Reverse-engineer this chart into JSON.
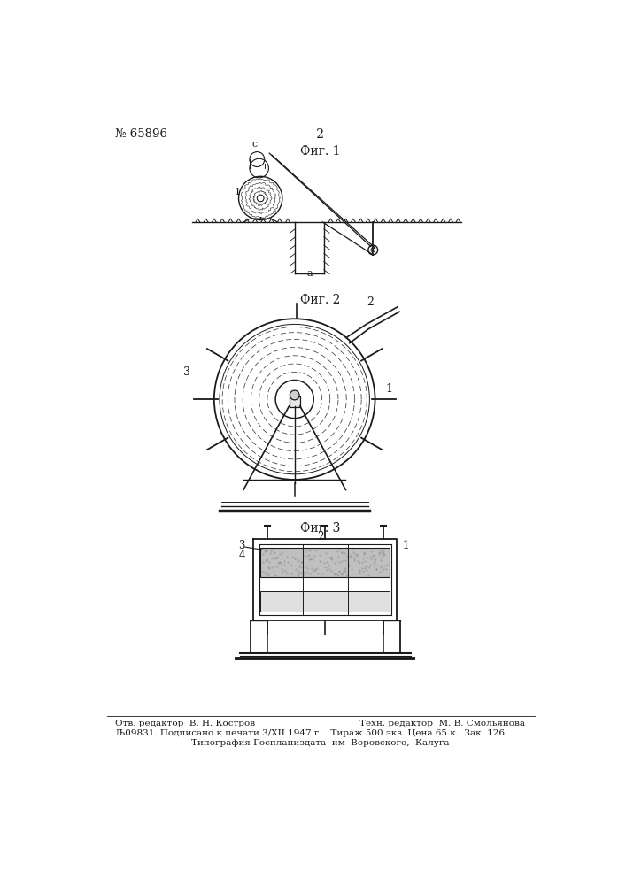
{
  "patent_number": "№ 65896",
  "page_number": "— 2 —",
  "fig1_label": "Фиг. 1",
  "fig2_label": "Фиг. 2",
  "fig3_label": "Фиг. 3",
  "footer_line1a": "Отв. редактор  В. Н. Костров",
  "footer_line1b": "Техн. редактор  М. В. Смольянова",
  "footer_line2": "Љ09831. Подписано к печати 3/XII 1947 г.   Тираж 500 экз. Цена 65 к.  Зак. 126",
  "footer_line3": "Типография Госпланиздата  им  Воровского,  Калуга",
  "bg_color": "#ffffff",
  "line_color": "#1a1a1a"
}
